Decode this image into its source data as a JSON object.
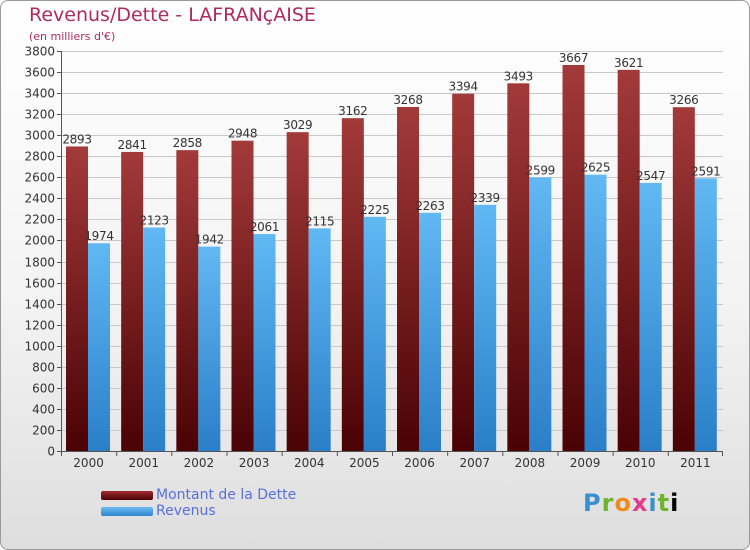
{
  "title": "Revenus/Dette - LAFRANçAISE",
  "subtitle": "(en milliers d'€)",
  "logo": "Proxiti",
  "colors": {
    "dette": "#7f1416",
    "revenus": "#4ea5e6",
    "grid": "#c8c8c8",
    "label": "#333333"
  },
  "chart_data": {
    "type": "bar",
    "title": "Revenus/Dette - LAFRANçAISE",
    "subtitle": "(en milliers d'€)",
    "categories": [
      "2000",
      "2001",
      "2002",
      "2003",
      "2004",
      "2005",
      "2006",
      "2007",
      "2008",
      "2009",
      "2010",
      "2011"
    ],
    "series": [
      {
        "name": "Montant de la Dette",
        "values": [
          2893,
          2841,
          2858,
          2948,
          3029,
          3162,
          3268,
          3394,
          3493,
          3667,
          3621,
          3266
        ]
      },
      {
        "name": "Revenus",
        "values": [
          1974,
          2123,
          1942,
          2061,
          2115,
          2225,
          2263,
          2339,
          2599,
          2625,
          2547,
          2591
        ]
      }
    ],
    "ylim": [
      0,
      3800
    ],
    "ytick_step": 200,
    "grid": true,
    "legend_position": "bottom-left"
  }
}
